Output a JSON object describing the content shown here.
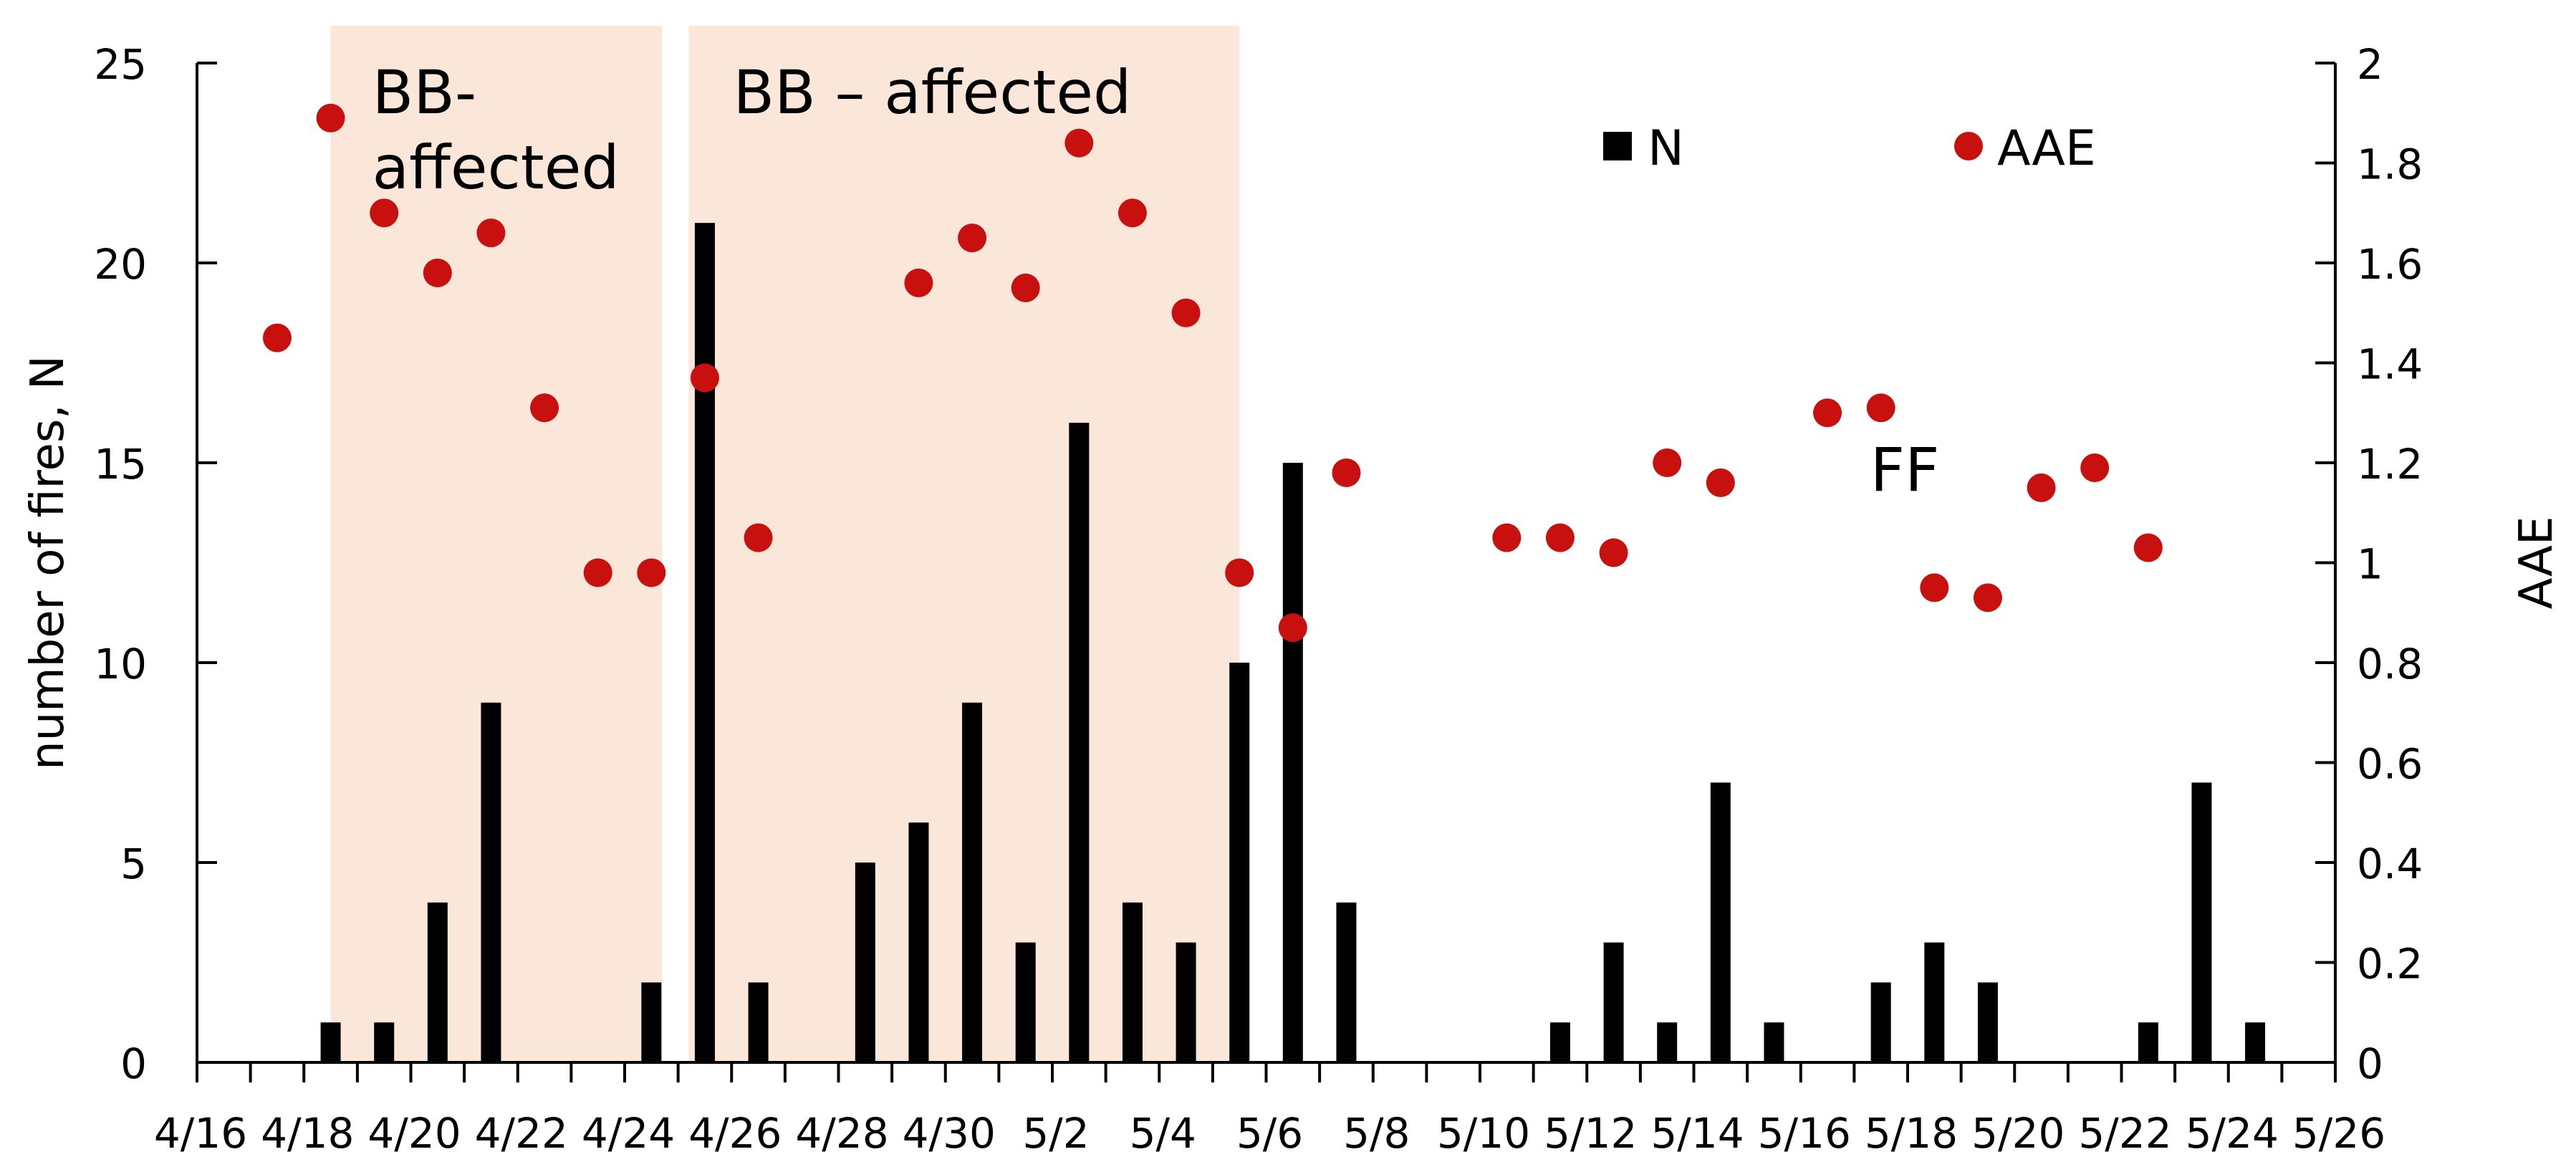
{
  "chart_data": {
    "type": "bar+scatter",
    "left_axis": {
      "label": "number of fires, N",
      "ylim": [
        0,
        25
      ],
      "ticks": [
        "0",
        "5",
        "10",
        "15",
        "20",
        "25"
      ]
    },
    "right_axis": {
      "label": "AAE",
      "ylim": [
        0,
        2
      ],
      "ticks": [
        "0",
        "0.2",
        "0.4",
        "0.6",
        "0.8",
        "1",
        "1.2",
        "1.4",
        "1.6",
        "1.8",
        "2"
      ]
    },
    "x_axis": {
      "start_day": 0,
      "end_day": 40,
      "tick_labels": [
        "4/16",
        "4/18",
        "4/20",
        "4/22",
        "4/24",
        "4/26",
        "4/28",
        "4/30",
        "5/2",
        "5/4",
        "5/6",
        "5/8",
        "5/10",
        "5/12",
        "5/14",
        "5/16",
        "5/18",
        "5/20",
        "5/22",
        "5/24",
        "5/26"
      ]
    },
    "series": [
      {
        "name": "N",
        "type": "bar",
        "color": "#000000",
        "points": [
          {
            "day": 2.5,
            "value": 1
          },
          {
            "day": 3.5,
            "value": 1
          },
          {
            "day": 4.5,
            "value": 4
          },
          {
            "day": 5.5,
            "value": 9
          },
          {
            "day": 8.5,
            "value": 2
          },
          {
            "day": 9.5,
            "value": 21
          },
          {
            "day": 10.5,
            "value": 2
          },
          {
            "day": 12.5,
            "value": 5
          },
          {
            "day": 13.5,
            "value": 6
          },
          {
            "day": 14.5,
            "value": 9
          },
          {
            "day": 15.5,
            "value": 3
          },
          {
            "day": 16.5,
            "value": 16
          },
          {
            "day": 17.5,
            "value": 4
          },
          {
            "day": 18.5,
            "value": 3
          },
          {
            "day": 19.5,
            "value": 10
          },
          {
            "day": 20.5,
            "value": 15
          },
          {
            "day": 21.5,
            "value": 4
          },
          {
            "day": 25.5,
            "value": 1
          },
          {
            "day": 26.5,
            "value": 3
          },
          {
            "day": 27.5,
            "value": 1
          },
          {
            "day": 28.5,
            "value": 7
          },
          {
            "day": 29.5,
            "value": 1
          },
          {
            "day": 31.5,
            "value": 2
          },
          {
            "day": 32.5,
            "value": 3
          },
          {
            "day": 33.5,
            "value": 2
          },
          {
            "day": 36.5,
            "value": 1
          },
          {
            "day": 37.5,
            "value": 7
          },
          {
            "day": 38.5,
            "value": 1
          }
        ]
      },
      {
        "name": "AAE",
        "type": "scatter",
        "color": "#c8100f",
        "points": [
          {
            "day": 1.5,
            "value": 1.45
          },
          {
            "day": 2.5,
            "value": 1.89
          },
          {
            "day": 3.5,
            "value": 1.7
          },
          {
            "day": 4.5,
            "value": 1.58
          },
          {
            "day": 5.5,
            "value": 1.66
          },
          {
            "day": 6.5,
            "value": 1.31
          },
          {
            "day": 7.5,
            "value": 0.98
          },
          {
            "day": 8.5,
            "value": 0.98
          },
          {
            "day": 9.5,
            "value": 1.37
          },
          {
            "day": 10.5,
            "value": 1.05
          },
          {
            "day": 13.5,
            "value": 1.56
          },
          {
            "day": 14.5,
            "value": 1.65
          },
          {
            "day": 15.5,
            "value": 1.55
          },
          {
            "day": 16.5,
            "value": 1.84
          },
          {
            "day": 17.5,
            "value": 1.7
          },
          {
            "day": 18.5,
            "value": 1.5
          },
          {
            "day": 19.5,
            "value": 0.98
          },
          {
            "day": 20.5,
            "value": 0.87
          },
          {
            "day": 21.5,
            "value": 1.18
          },
          {
            "day": 24.5,
            "value": 1.05
          },
          {
            "day": 25.5,
            "value": 1.05
          },
          {
            "day": 26.5,
            "value": 1.02
          },
          {
            "day": 27.5,
            "value": 1.2
          },
          {
            "day": 28.5,
            "value": 1.16
          },
          {
            "day": 30.5,
            "value": 1.3
          },
          {
            "day": 31.5,
            "value": 1.31
          },
          {
            "day": 32.5,
            "value": 0.95
          },
          {
            "day": 33.5,
            "value": 0.93
          },
          {
            "day": 34.5,
            "value": 1.15
          },
          {
            "day": 35.5,
            "value": 1.19
          },
          {
            "day": 36.5,
            "value": 1.03
          }
        ]
      }
    ],
    "shaded_regions": [
      {
        "name": "BB-affected",
        "label_lines": [
          "BB-",
          "affected"
        ],
        "start_day": 2.5,
        "end_day": 8.7,
        "color": "#fbe6da"
      },
      {
        "name": "BB - affected",
        "label_lines": [
          "BB – affected"
        ],
        "start_day": 9.2,
        "end_day": 19.5,
        "color": "#fbe6da"
      }
    ],
    "annotations": [
      {
        "name": "FF",
        "text": "FF",
        "day": 31.3,
        "left_value": 14.3
      }
    ],
    "legend": [
      {
        "name": "N",
        "marker": "square",
        "color": "#000000"
      },
      {
        "name": "AAE",
        "marker": "circle",
        "color": "#c8100f"
      }
    ],
    "legend_position": "top-right"
  }
}
